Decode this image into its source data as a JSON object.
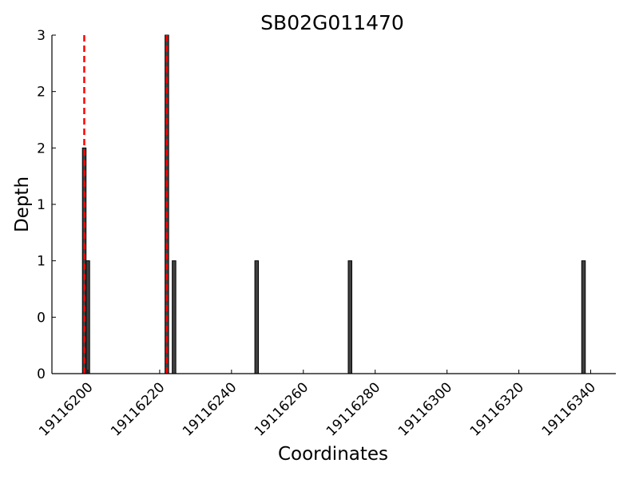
{
  "chart_data": {
    "type": "bar",
    "title": "SB02G011470",
    "xlabel": "Coordinates",
    "ylabel": "Depth",
    "xlim": [
      19116190,
      19116347
    ],
    "ylim": [
      0,
      3
    ],
    "x_ticks": [
      19116200,
      19116220,
      19116240,
      19116260,
      19116280,
      19116300,
      19116320,
      19116340
    ],
    "y_tick_values": [
      0,
      0.5,
      1,
      1.5,
      2,
      2.5,
      3
    ],
    "y_tick_labels": [
      "0",
      "0",
      "1",
      "1",
      "2",
      "2",
      "3"
    ],
    "bars": [
      {
        "x": 19116199,
        "value": 2
      },
      {
        "x": 19116200,
        "value": 1
      },
      {
        "x": 19116222,
        "value": 3
      },
      {
        "x": 19116224,
        "value": 1
      },
      {
        "x": 19116247,
        "value": 1
      },
      {
        "x": 19116273,
        "value": 1
      },
      {
        "x": 19116338,
        "value": 1
      }
    ],
    "reference_lines": [
      19116199,
      19116222
    ],
    "colors": {
      "bar": "#404040",
      "bar_edge": "#000000",
      "reference_line": "#ff0000"
    },
    "grid": false,
    "legend": "none"
  }
}
